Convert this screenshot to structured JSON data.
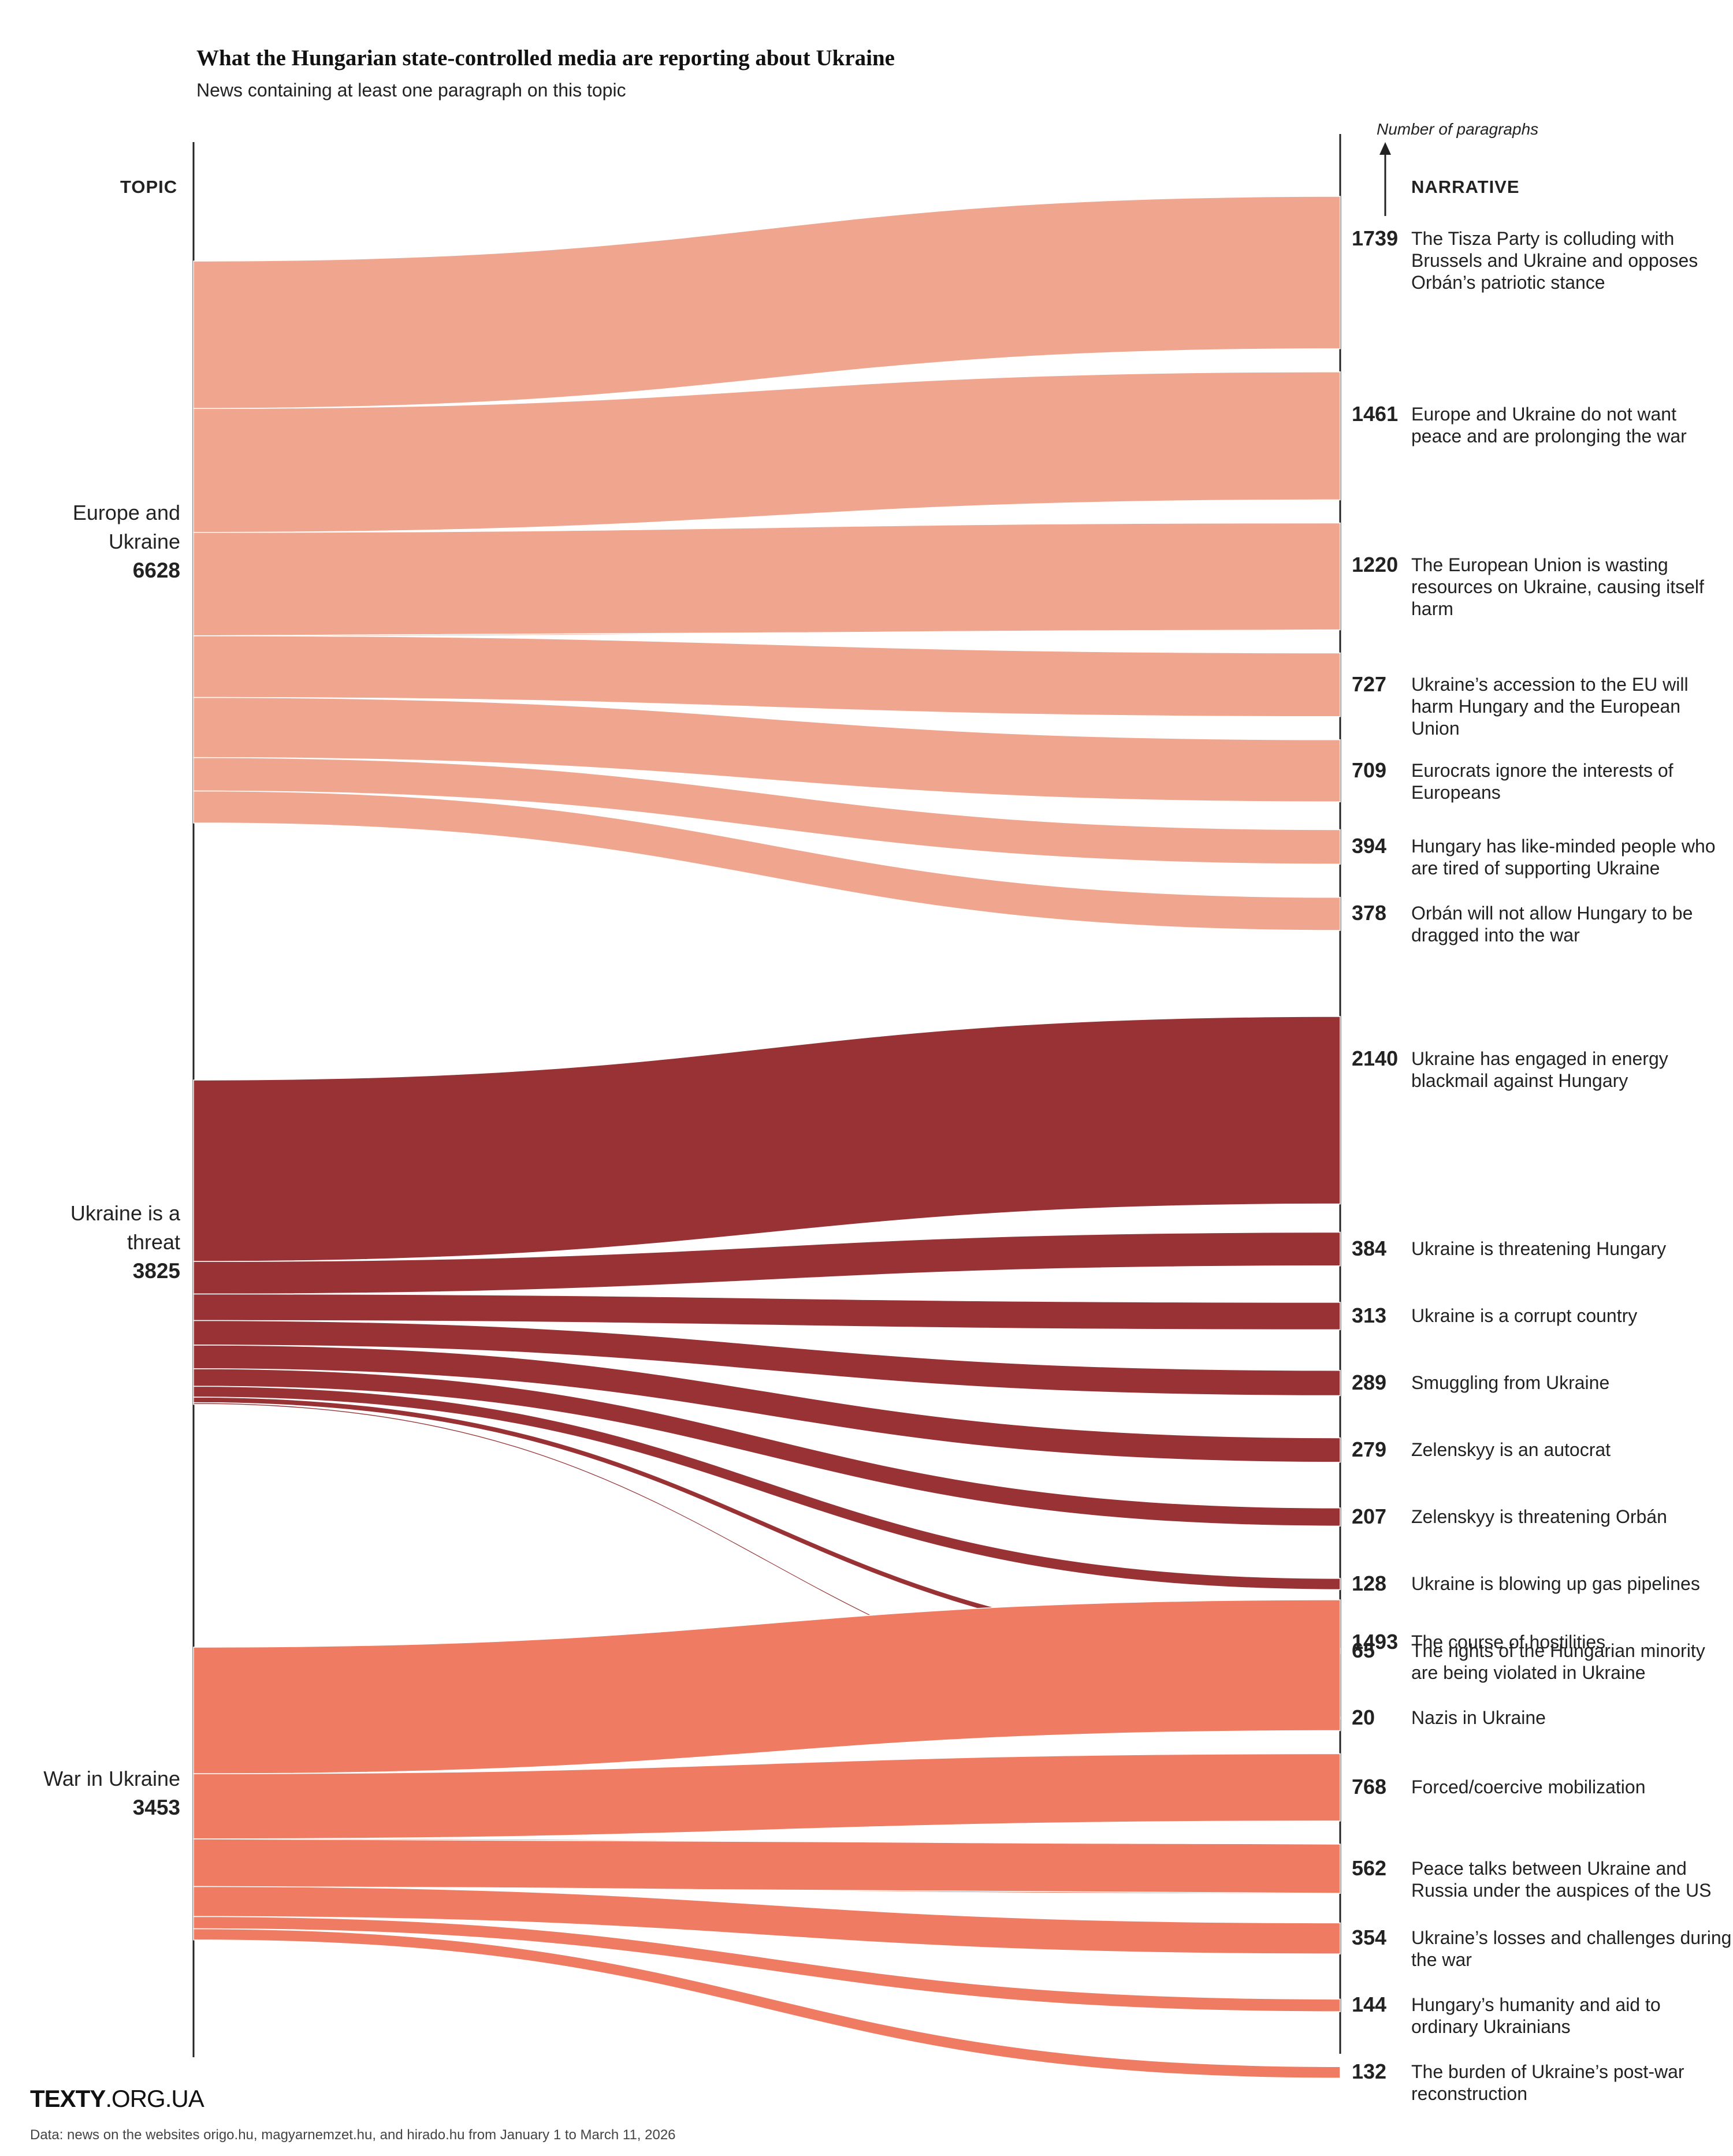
{
  "header": {
    "title": "What the Hungarian state-controlled media are reporting about Ukraine",
    "subtitle": "News containing at least one paragraph on this topic",
    "topic_header": "TOPIC",
    "narrative_header": "NARRATIVE",
    "axis_note": "Number of paragraphs"
  },
  "footer": {
    "logo_bold": "TEXTY",
    "logo_rest": ".ORG.UA",
    "source": "Data: news on the websites origo.hu, magyarnemzet.hu, and hirado.hu from January 1 to March 11, 2026"
  },
  "colors": {
    "europe": "#f0a68e",
    "threat": "#983235",
    "war": "#ee7b62",
    "axis": "#222222"
  },
  "chart_data": {
    "type": "sankey",
    "unit": "Number of paragraphs",
    "topics": [
      {
        "name": "Europe and\nUkraine",
        "value": 6628,
        "color": "#f0a68e",
        "narratives": [
          {
            "label": "The Tisza Party is colluding with Brussels and Ukraine and opposes Orbán’s patriotic stance",
            "value": 1739
          },
          {
            "label": "Europe and Ukraine do not want peace and are prolonging the war",
            "value": 1461
          },
          {
            "label": "The European Union is wasting resources on Ukraine, causing itself harm",
            "value": 1220
          },
          {
            "label": "Ukraine’s accession to the EU will harm Hungary and the European Union",
            "value": 727
          },
          {
            "label": "Eurocrats ignore the interests of Europeans",
            "value": 709
          },
          {
            "label": "Hungary has like-minded people who are tired of supporting Ukraine",
            "value": 394
          },
          {
            "label": "Orbán will not allow Hungary to be dragged into the war",
            "value": 378
          }
        ]
      },
      {
        "name": "Ukraine is a\nthreat",
        "value": 3825,
        "color": "#983235",
        "narratives": [
          {
            "label": "Ukraine has engaged in energy blackmail against Hungary",
            "value": 2140
          },
          {
            "label": "Ukraine is threatening Hungary",
            "value": 384
          },
          {
            "label": "Ukraine is a corrupt country",
            "value": 313
          },
          {
            "label": "Smuggling from Ukraine",
            "value": 289
          },
          {
            "label": "Zelenskyy is an autocrat",
            "value": 279
          },
          {
            "label": "Zelenskyy is threatening Orbán",
            "value": 207
          },
          {
            "label": "Ukraine is blowing up gas pipelines",
            "value": 128
          },
          {
            "label": "The rights of the Hungarian minority are being violated in Ukraine",
            "value": 65
          },
          {
            "label": "Nazis in Ukraine",
            "value": 20
          }
        ]
      },
      {
        "name": "War in Ukraine",
        "value": 3453,
        "color": "#ee7b62",
        "narratives": [
          {
            "label": "The course of hostilities",
            "value": 1493
          },
          {
            "label": "Forced/coercive mobilization",
            "value": 768
          },
          {
            "label": "Peace talks between Ukraine and Russia under the auspices of the US",
            "value": 562
          },
          {
            "label": "Ukraine’s losses and challenges during the war",
            "value": 354
          },
          {
            "label": "Hungary’s humanity and aid to ordinary Ukrainians",
            "value": 144
          },
          {
            "label": "The burden of Ukraine’s post-war reconstruction",
            "value": 132
          }
        ]
      }
    ]
  }
}
